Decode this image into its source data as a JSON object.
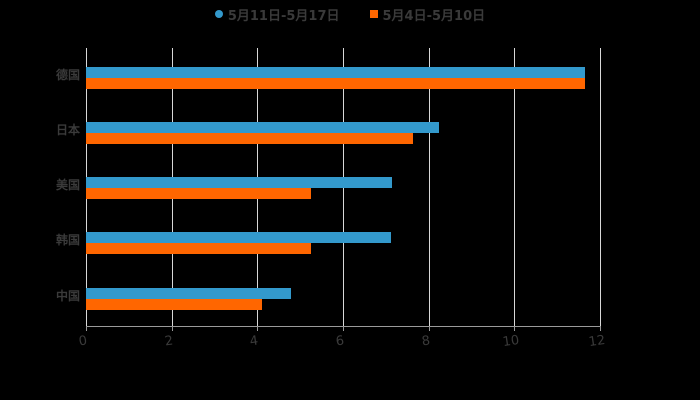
{
  "chart_data": {
    "type": "bar",
    "orientation": "horizontal",
    "title": "",
    "xlabel": "",
    "ylabel": "",
    "xlim": [
      0,
      12
    ],
    "x_ticks": [
      "0",
      "2",
      "4",
      "6",
      "8",
      "10",
      "12"
    ],
    "grid": true,
    "legend_position": "top",
    "categories": [
      "德国",
      "日本",
      "美国",
      "韩国",
      "中国"
    ],
    "series": [
      {
        "name": "5月11日-5月17日",
        "color": "#3399cc",
        "values": [
          11.65,
          8.24,
          7.14,
          7.12,
          4.79
        ]
      },
      {
        "name": "5月4日-5月10日",
        "color": "#ff6600",
        "values": [
          11.65,
          7.63,
          5.25,
          5.25,
          4.11
        ]
      }
    ]
  },
  "legend": {
    "items": [
      {
        "label": "5月11日-5月17日",
        "marker": "circle",
        "color": "#3399cc"
      },
      {
        "label": "5月4日-5月10日",
        "marker": "square",
        "color": "#ff6600"
      }
    ]
  }
}
